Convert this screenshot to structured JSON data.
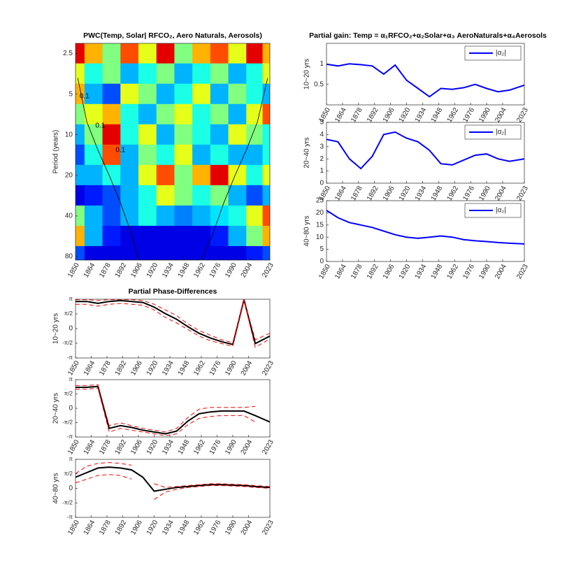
{
  "chart_data": [
    {
      "type": "heatmap",
      "title": "PWC(Temp, Solar| RFCO₂, Aero Naturals, Aerosols)",
      "ylabel": "Period (years)",
      "log_y": true,
      "x": [
        1850,
        1866,
        1882,
        1898,
        1914,
        1930,
        1946,
        1962,
        1978,
        1994,
        2010,
        2023
      ],
      "y": [
        2.5,
        3.5,
        5,
        7,
        10,
        14,
        20,
        28,
        40,
        56,
        80
      ],
      "z": [
        [
          0.9,
          0.7,
          0.5,
          0.8,
          0.6,
          0.9,
          0.5,
          0.7,
          0.8,
          0.6,
          0.9,
          0.7
        ],
        [
          0.6,
          0.4,
          0.5,
          0.3,
          0.4,
          0.5,
          0.3,
          0.4,
          0.5,
          0.3,
          0.4,
          0.6
        ],
        [
          0.7,
          0.3,
          0.2,
          0.6,
          0.5,
          0.3,
          0.4,
          0.6,
          0.3,
          0.5,
          0.4,
          0.3
        ],
        [
          0.5,
          0.6,
          0.7,
          0.4,
          0.3,
          0.5,
          0.6,
          0.4,
          0.5,
          0.3,
          0.6,
          0.8
        ],
        [
          0.3,
          0.5,
          0.9,
          0.4,
          0.6,
          0.3,
          0.5,
          0.4,
          0.3,
          0.6,
          0.5,
          0.4
        ],
        [
          0.2,
          0.4,
          0.8,
          0.3,
          0.5,
          0.4,
          0.6,
          0.3,
          0.4,
          0.3,
          0.3,
          0.4
        ],
        [
          0.3,
          0.3,
          0.4,
          0.3,
          0.6,
          0.8,
          0.5,
          0.7,
          0.9,
          0.6,
          0.4,
          0.6
        ],
        [
          0.1,
          0.15,
          0.2,
          0.3,
          0.4,
          0.6,
          0.5,
          0.4,
          0.5,
          0.3,
          0.2,
          0.3
        ],
        [
          0.5,
          0.3,
          0.2,
          0.3,
          0.4,
          0.3,
          0.25,
          0.3,
          0.35,
          0.4,
          0.6,
          0.8
        ],
        [
          0.7,
          0.3,
          0.15,
          0.1,
          0.1,
          0.1,
          0.1,
          0.1,
          0.15,
          0.3,
          0.5,
          0.7
        ],
        [
          0.2,
          0.1,
          0.1,
          0.1,
          0.1,
          0.1,
          0.1,
          0.1,
          0.1,
          0.1,
          0.15,
          0.2
        ]
      ],
      "zlim": [
        0,
        1
      ],
      "coi": {
        "x": [
          1852,
          1860,
          1870,
          1880,
          1890,
          1900,
          1906,
          1962,
          1972,
          1982,
          1992,
          2002,
          2012,
          2021
        ],
        "y": [
          3.8,
          8,
          13,
          20,
          32,
          55,
          85,
          85,
          55,
          32,
          20,
          13,
          8,
          3.8
        ]
      },
      "annotations": [
        {
          "text": "0.1",
          "x": 1858,
          "y": 5.2
        },
        {
          "text": "0.1",
          "x": 1872,
          "y": 8.6
        },
        {
          "text": "0.1",
          "x": 1890,
          "y": 13
        }
      ],
      "xlim": [
        1850,
        2023
      ],
      "xticks": [
        1850,
        1864,
        1878,
        1892,
        1906,
        1920,
        1934,
        1948,
        1962,
        1976,
        1990,
        2004,
        2023
      ],
      "ylim": [
        2.1,
        85
      ],
      "yticks": [
        2.5,
        5,
        10,
        20,
        40,
        80
      ]
    },
    {
      "type": "line",
      "title": "Partial gain: Temp = α₁RFCO₂+α₂Solar+α₃ AeroNaturals+α₄Aerosols",
      "ylabel": "10~20 yrs",
      "legend": "upper right",
      "x": [
        1850,
        1860,
        1870,
        1880,
        1890,
        1900,
        1910,
        1920,
        1930,
        1940,
        1950,
        1960,
        1970,
        1980,
        1990,
        2000,
        2010,
        2023
      ],
      "series": [
        {
          "name": "|α₂|",
          "color": "#0000ff",
          "values": [
            0.99,
            0.95,
            1.0,
            0.98,
            0.95,
            0.75,
            0.97,
            0.6,
            0.4,
            0.2,
            0.4,
            0.38,
            0.42,
            0.5,
            0.4,
            0.32,
            0.36,
            0.48
          ]
        }
      ],
      "xlim": [
        1850,
        2023
      ],
      "xticks": [
        1850,
        1864,
        1878,
        1892,
        1906,
        1920,
        1934,
        1948,
        1962,
        1976,
        1990,
        2004,
        2023
      ],
      "ylim": [
        0,
        1.5
      ],
      "yticks": [
        0.5,
        1
      ]
    },
    {
      "type": "line",
      "ylabel": "20~40 yrs",
      "legend": "upper right",
      "x": [
        1850,
        1860,
        1870,
        1880,
        1890,
        1900,
        1910,
        1920,
        1930,
        1940,
        1950,
        1960,
        1970,
        1980,
        1990,
        2000,
        2010,
        2023
      ],
      "series": [
        {
          "name": "|α₂|",
          "color": "#0000ff",
          "values": [
            3.6,
            3.4,
            2.0,
            1.2,
            2.2,
            4.0,
            4.2,
            3.7,
            3.4,
            2.7,
            1.6,
            1.5,
            1.9,
            2.3,
            2.4,
            2.0,
            1.8,
            2.0
          ]
        }
      ],
      "xlim": [
        1850,
        2023
      ],
      "xticks": [
        1850,
        1864,
        1878,
        1892,
        1906,
        1920,
        1934,
        1948,
        1962,
        1976,
        1990,
        2004,
        2023
      ],
      "ylim": [
        0,
        5
      ],
      "yticks": [
        0,
        1,
        2,
        3,
        4,
        5
      ]
    },
    {
      "type": "line",
      "ylabel": "40~80 yrs",
      "legend": "upper right",
      "x": [
        1850,
        1860,
        1870,
        1880,
        1890,
        1900,
        1910,
        1920,
        1930,
        1940,
        1950,
        1960,
        1970,
        1980,
        1990,
        2000,
        2010,
        2023
      ],
      "series": [
        {
          "name": "|α₂|",
          "color": "#0000ff",
          "values": [
            21,
            18,
            16,
            15,
            14,
            12.5,
            11,
            10,
            9.5,
            10,
            10.5,
            10,
            9,
            8.5,
            8.2,
            7.8,
            7.5,
            7.2
          ]
        }
      ],
      "xlim": [
        1850,
        2023
      ],
      "xticks": [
        1850,
        1864,
        1878,
        1892,
        1906,
        1920,
        1934,
        1948,
        1962,
        1976,
        1990,
        2004,
        2023
      ],
      "ylim": [
        0,
        25
      ],
      "yticks": [
        0,
        5,
        10,
        15,
        20,
        25
      ]
    },
    {
      "type": "line",
      "title": "Partial Phase-Differences",
      "ylabel": "10~20 yrs",
      "x": [
        1850,
        1860,
        1870,
        1880,
        1890,
        1900,
        1910,
        1920,
        1930,
        1940,
        1950,
        1960,
        1970,
        1980,
        1990,
        2000,
        2010,
        2023
      ],
      "series": [
        {
          "color": "#000000",
          "values": [
            2.9,
            2.9,
            2.7,
            2.9,
            3.0,
            2.9,
            2.8,
            2.3,
            1.6,
            1.0,
            0.2,
            -0.5,
            -1.0,
            -1.4,
            -1.7,
            3.1,
            -1.6,
            -0.8
          ]
        },
        {
          "color": "#ff0000",
          "linestyle": "--",
          "values": [
            3.1,
            3.1,
            3.0,
            3.1,
            3.1,
            3.1,
            3.0,
            2.6,
            2.0,
            1.4,
            0.5,
            -0.2,
            -0.7,
            -1.2,
            -1.5,
            3.1,
            -1.2,
            -0.5
          ]
        },
        {
          "color": "#ff0000",
          "linestyle": "--",
          "values": [
            2.6,
            2.6,
            2.4,
            2.6,
            2.7,
            2.6,
            2.5,
            2.0,
            1.2,
            0.6,
            -0.1,
            -0.8,
            -1.3,
            -1.6,
            -1.9,
            3.0,
            -2.0,
            -1.1
          ]
        }
      ],
      "xlim": [
        1850,
        2023
      ],
      "xticks": [
        1850,
        1864,
        1878,
        1892,
        1906,
        1920,
        1934,
        1948,
        1962,
        1976,
        1990,
        2004,
        2023
      ],
      "ylim": [
        -3.1416,
        3.1416
      ],
      "yticks": [
        {
          "value": -3.1416,
          "label": "-π"
        },
        {
          "value": -1.5708,
          "label": "-π/2"
        },
        0,
        {
          "value": 1.5708,
          "label": "π/2"
        },
        {
          "value": 3.1416,
          "label": "π"
        }
      ]
    },
    {
      "type": "line",
      "ylabel": "20~40 yrs",
      "x": [
        1850,
        1860,
        1870,
        1880,
        1890,
        1900,
        1910,
        1920,
        1930,
        1940,
        1950,
        1960,
        1970,
        1980,
        1990,
        2000,
        2010,
        2023
      ],
      "series": [
        {
          "color": "#000000",
          "values": [
            2.3,
            2.3,
            2.4,
            -2.2,
            -1.9,
            -2.1,
            -2.4,
            -2.6,
            -2.8,
            -2.5,
            -1.4,
            -0.6,
            -0.4,
            -0.3,
            -0.3,
            -0.3,
            -0.8,
            -1.5
          ]
        },
        {
          "color": "#ff0000",
          "linestyle": "--",
          "values": [
            2.5,
            2.5,
            2.6,
            -1.9,
            -1.6,
            -1.9,
            -2.2,
            -2.4,
            -2.6,
            -2.2,
            -1.0,
            -0.1,
            0.1,
            0.1,
            0.1,
            0.1,
            0.2,
            null
          ]
        },
        {
          "color": "#ff0000",
          "linestyle": "--",
          "values": [
            2.1,
            2.1,
            2.2,
            -2.6,
            -2.2,
            -2.4,
            -2.6,
            -2.8,
            -3.0,
            -2.8,
            -1.8,
            -1.1,
            -0.9,
            -0.8,
            -0.8,
            -0.8,
            -1.5,
            null
          ]
        }
      ],
      "xlim": [
        1850,
        2023
      ],
      "xticks": [
        1850,
        1864,
        1878,
        1892,
        1906,
        1920,
        1934,
        1948,
        1962,
        1976,
        1990,
        2004,
        2023
      ],
      "ylim": [
        -3.1416,
        3.1416
      ],
      "yticks": [
        {
          "value": -3.1416,
          "label": "-π"
        },
        {
          "value": -1.5708,
          "label": "-π/2"
        },
        0,
        {
          "value": 1.5708,
          "label": "π/2"
        },
        {
          "value": 3.1416,
          "label": "π"
        }
      ]
    },
    {
      "type": "line",
      "ylabel": "40~80 yrs",
      "x": [
        1850,
        1860,
        1870,
        1880,
        1890,
        1900,
        1910,
        1920,
        1930,
        1940,
        1950,
        1960,
        1970,
        1980,
        1990,
        2000,
        2010,
        2023
      ],
      "series": [
        {
          "color": "#000000",
          "values": [
            1.2,
            1.7,
            2.2,
            2.3,
            2.2,
            2.0,
            1.2,
            -0.3,
            -0.1,
            0.1,
            0.2,
            0.3,
            0.4,
            0.4,
            0.35,
            0.3,
            0.2,
            0.1
          ]
        },
        {
          "color": "#ff0000",
          "linestyle": "--",
          "values": [
            1.6,
            2.4,
            2.7,
            2.8,
            2.7,
            2.5,
            null,
            0.5,
            0.1,
            0.2,
            0.3,
            0.4,
            0.5,
            0.5,
            0.45,
            0.4,
            0.3,
            0.2
          ]
        },
        {
          "color": "#ff0000",
          "linestyle": "--",
          "values": [
            0.6,
            1.0,
            1.4,
            1.5,
            1.4,
            1.0,
            null,
            -1.2,
            -0.4,
            -0.1,
            0.1,
            0.2,
            0.3,
            0.3,
            0.25,
            0.2,
            0.1,
            0.0
          ]
        }
      ],
      "xlim": [
        1850,
        2023
      ],
      "xticks": [
        1850,
        1864,
        1878,
        1892,
        1906,
        1920,
        1934,
        1948,
        1962,
        1976,
        1990,
        2004,
        2023
      ],
      "ylim": [
        -3.1416,
        3.1416
      ],
      "yticks": [
        {
          "value": -3.1416,
          "label": "-π"
        },
        {
          "value": -1.5708,
          "label": "-π/2"
        },
        0,
        {
          "value": 1.5708,
          "label": "π/2"
        },
        {
          "value": 3.1416,
          "label": "π"
        }
      ]
    }
  ]
}
